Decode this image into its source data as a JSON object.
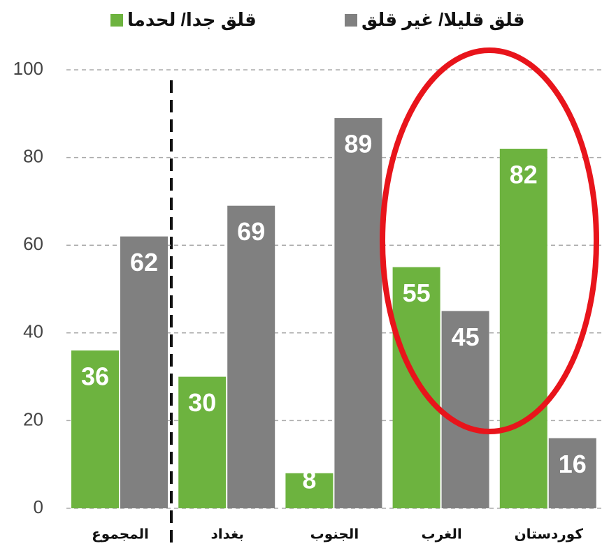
{
  "chart_data": {
    "type": "bar",
    "categories": [
      "المجموع",
      "بغداد",
      "الجنوب",
      "الغرب",
      "كوردستان"
    ],
    "series": [
      {
        "name": "قلق جدا/ لحدما",
        "color": "#6db33f",
        "values": [
          36,
          30,
          8,
          55,
          82
        ]
      },
      {
        "name": "قلق قليلا/ غير قلق",
        "color": "#808080",
        "values": [
          62,
          69,
          89,
          45,
          16
        ]
      }
    ],
    "ylim": [
      0,
      100
    ],
    "yticks": [
      0,
      20,
      40,
      60,
      80,
      100
    ],
    "grid": true
  }
}
